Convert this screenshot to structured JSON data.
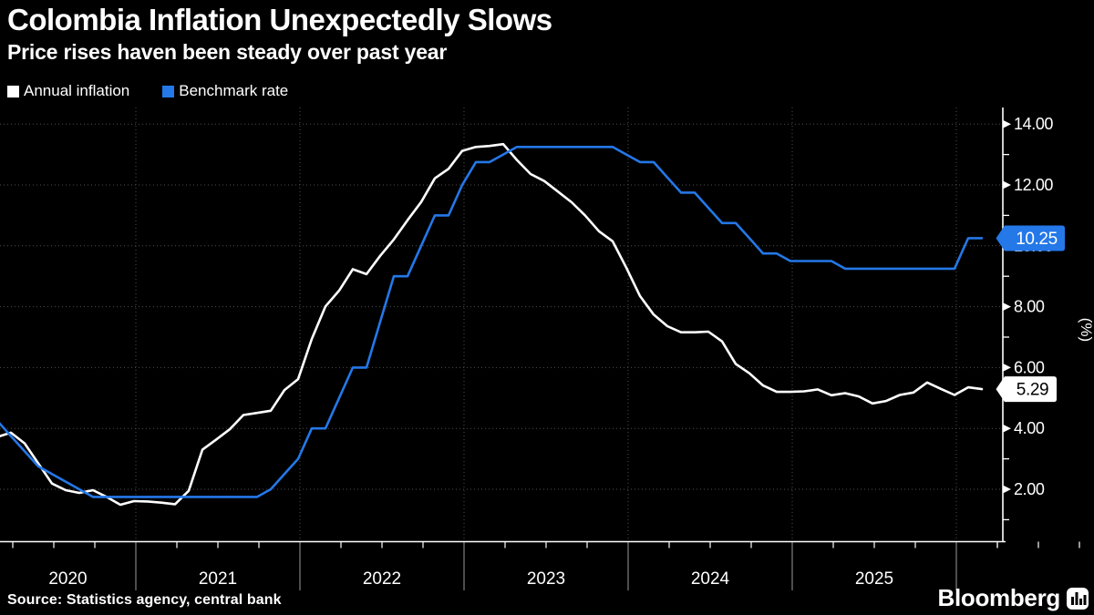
{
  "header": {
    "title": "Colombia Inflation Unexpectedly Slows",
    "subtitle": "Price rises haven been steady over past year"
  },
  "legend": [
    {
      "label": "Annual inflation",
      "color": "#ffffff"
    },
    {
      "label": "Benchmark rate",
      "color": "#2478e8"
    }
  ],
  "footer": {
    "source": "Source: Statistics agency, central bank",
    "brand": "Bloomberg"
  },
  "colors": {
    "background": "#000000",
    "text": "#ffffff",
    "grid": "#4f4f4f",
    "axis": "#ffffff",
    "year_tick": "#9a9a9a",
    "blue": "#2478e8"
  },
  "chart_data": {
    "type": "line",
    "title": "Colombia Inflation Unexpectedly Slows",
    "subtitle": "Price rises haven been steady over past year",
    "ylabel": "(%)",
    "x_start_month": "2020-01",
    "x_months_per_point": 1,
    "y_axis": {
      "tick_values": [
        2,
        4,
        6,
        8,
        10,
        12,
        14
      ],
      "minor_tick_values": [
        1,
        3,
        5,
        7,
        9,
        11,
        13
      ],
      "tick_suffix": ".00",
      "ylim": [
        0.3,
        14.5
      ],
      "unit_label": "(%)"
    },
    "x_axis": {
      "year_labels": [
        "2020",
        "2021",
        "2022",
        "2023",
        "2024",
        "2025"
      ],
      "grid": "years",
      "minor_ticks": "quarters"
    },
    "series": [
      {
        "name": "Annual inflation",
        "color": "#ffffff",
        "end_tag": {
          "text": "5.29",
          "bg": "#ffffff",
          "fg": "#000000"
        },
        "values": [
          3.62,
          3.72,
          3.86,
          3.51,
          2.85,
          2.19,
          1.97,
          1.88,
          1.97,
          1.75,
          1.49,
          1.61,
          1.6,
          1.56,
          1.51,
          1.95,
          3.3,
          3.63,
          3.97,
          4.44,
          4.51,
          4.58,
          5.26,
          5.62,
          6.94,
          8.01,
          8.53,
          9.23,
          9.07,
          9.67,
          10.21,
          10.84,
          11.44,
          12.22,
          12.53,
          13.12,
          13.25,
          13.28,
          13.34,
          12.82,
          12.36,
          12.13,
          11.78,
          11.43,
          10.99,
          10.48,
          10.15,
          9.28,
          8.35,
          7.74,
          7.36,
          7.16,
          7.16,
          7.18,
          6.86,
          6.12,
          5.81,
          5.41,
          5.2,
          5.2,
          5.22,
          5.28,
          5.09,
          5.16,
          5.05,
          4.82,
          4.9,
          5.1,
          5.18,
          5.51,
          5.3,
          5.1,
          5.35,
          5.29
        ]
      },
      {
        "name": "Benchmark rate",
        "color": "#2478e8",
        "end_tag": {
          "text": "10.25",
          "bg": "#2478e8",
          "fg": "#ffffff"
        },
        "values": [
          4.25,
          4.25,
          3.75,
          3.25,
          2.75,
          2.5,
          2.25,
          2.0,
          1.75,
          1.75,
          1.75,
          1.75,
          1.75,
          1.75,
          1.75,
          1.75,
          1.75,
          1.75,
          1.75,
          1.75,
          1.75,
          2.0,
          2.5,
          3.0,
          4.0,
          4.0,
          5.0,
          6.0,
          6.0,
          7.5,
          9.0,
          9.0,
          10.0,
          11.0,
          11.0,
          12.0,
          12.75,
          12.75,
          13.0,
          13.25,
          13.25,
          13.25,
          13.25,
          13.25,
          13.25,
          13.25,
          13.25,
          13.0,
          12.75,
          12.75,
          12.25,
          11.75,
          11.75,
          11.25,
          10.75,
          10.75,
          10.25,
          9.75,
          9.75,
          9.5,
          9.5,
          9.5,
          9.5,
          9.25,
          9.25,
          9.25,
          9.25,
          9.25,
          9.25,
          9.25,
          9.25,
          9.25,
          10.25,
          10.25
        ]
      }
    ],
    "legend_position": "top-left",
    "grid": true
  }
}
